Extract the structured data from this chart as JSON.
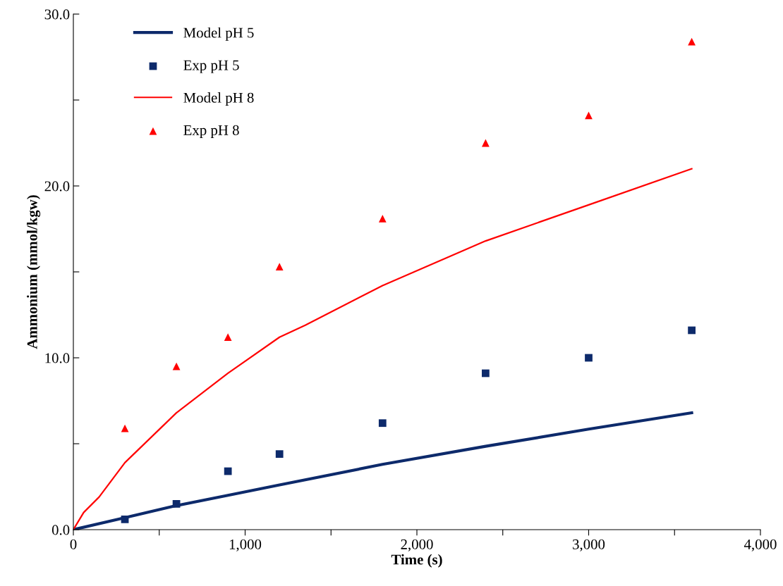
{
  "chart_data": {
    "type": "line",
    "xlabel": "Time (s)",
    "ylabel": "Ammonium (mmol/kgw)",
    "xlim": [
      0,
      4000
    ],
    "ylim": [
      0,
      30
    ],
    "xticks": [
      {
        "value": 0,
        "label": "0"
      },
      {
        "value": 500,
        "label": null
      },
      {
        "value": 1000,
        "label": "1,000"
      },
      {
        "value": 1500,
        "label": null
      },
      {
        "value": 2000,
        "label": "2,000"
      },
      {
        "value": 2500,
        "label": null
      },
      {
        "value": 3000,
        "label": "3,000"
      },
      {
        "value": 3500,
        "label": null
      },
      {
        "value": 4000,
        "label": "4,000"
      }
    ],
    "yticks": [
      {
        "value": 0,
        "label": "0.0"
      },
      {
        "value": 5,
        "label": null
      },
      {
        "value": 10,
        "label": "10.0"
      },
      {
        "value": 15,
        "label": null
      },
      {
        "value": 20,
        "label": "20.0"
      },
      {
        "value": 25,
        "label": null
      },
      {
        "value": 30,
        "label": "30.0"
      }
    ],
    "grid": false,
    "legend": "top left",
    "series": [
      {
        "name": "Model pH 5",
        "color": "#0d2a6b",
        "marker": "none",
        "line_style": "solid",
        "x": [
          0,
          300,
          600,
          900,
          1200,
          1800,
          2400,
          3000,
          3600
        ],
        "values": [
          0,
          0.7,
          1.4,
          2.0,
          2.6,
          3.8,
          4.85,
          5.85,
          6.8
        ]
      },
      {
        "name": "Exp pH 5",
        "type": "scatter",
        "color": "#0d2a6b",
        "marker": "square",
        "x": [
          300,
          600,
          900,
          1200,
          1800,
          2400,
          3000,
          3600
        ],
        "values": [
          0.6,
          1.5,
          3.4,
          4.4,
          6.2,
          9.1,
          10.0,
          11.6
        ]
      },
      {
        "name": "Model pH 8",
        "color": "#ff0000",
        "marker": "none",
        "line_style": "solid",
        "x": [
          0,
          60,
          150,
          300,
          600,
          900,
          1200,
          1350,
          1800,
          2400,
          3000,
          3600
        ],
        "values": [
          0,
          1.0,
          1.9,
          3.9,
          6.8,
          9.1,
          11.2,
          11.9,
          14.2,
          16.8,
          18.9,
          21.0
        ]
      },
      {
        "name": "Exp pH 8",
        "type": "scatter",
        "color": "#ff0000",
        "marker": "triangle",
        "x": [
          300,
          600,
          900,
          1200,
          1800,
          2400,
          3000,
          3600
        ],
        "values": [
          5.9,
          9.5,
          11.2,
          15.3,
          18.1,
          22.5,
          24.1,
          28.4
        ]
      }
    ]
  }
}
